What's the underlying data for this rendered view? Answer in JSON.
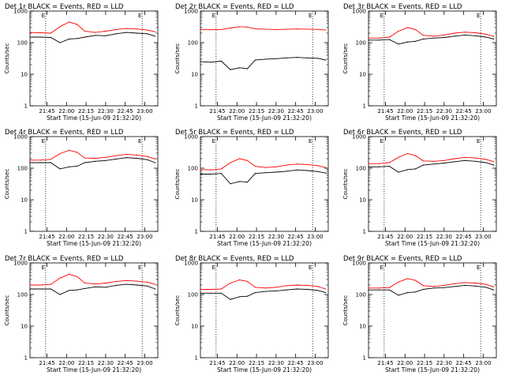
{
  "figure": {
    "background": "#ffffff",
    "line_colors": {
      "events": "#000000",
      "lld": "#ff0000"
    }
  },
  "chart_data": [
    {
      "type": "line",
      "title": "Det 1r BLACK = Events, RED = LLD",
      "xlabel": "Start Time (15-Jun-09 21:32:20)",
      "ylabel": "Counts/sec",
      "yscale": "log",
      "ylim": [
        1,
        1000
      ],
      "yticks": [
        "1",
        "10",
        "100",
        "1000"
      ],
      "xlim": [
        "21:32",
        "23:10"
      ],
      "xticks": [
        "21:45",
        "22:00",
        "22:15",
        "22:30",
        "22:45",
        "23:00"
      ],
      "markers": {
        "vlines": [
          "21:44",
          "22:58"
        ],
        "labels": [
          "E",
          "E"
        ],
        "label_position": "top"
      },
      "series": [
        {
          "name": "Events",
          "color": "#000000",
          "x": [
            "21:32",
            "21:40",
            "21:48",
            "21:55",
            "22:02",
            "22:08",
            "22:14",
            "22:22",
            "22:30",
            "22:38",
            "22:46",
            "22:54",
            "23:02",
            "23:08"
          ],
          "y": [
            150,
            150,
            145,
            100,
            130,
            135,
            150,
            170,
            165,
            190,
            210,
            200,
            190,
            160
          ]
        },
        {
          "name": "LLD",
          "color": "#ff0000",
          "x": [
            "21:32",
            "21:40",
            "21:48",
            "21:55",
            "22:02",
            "22:08",
            "22:14",
            "22:22",
            "22:30",
            "22:38",
            "22:46",
            "22:54",
            "23:02",
            "23:08"
          ],
          "y": [
            210,
            205,
            200,
            320,
            450,
            380,
            230,
            210,
            230,
            260,
            280,
            270,
            250,
            220
          ]
        }
      ]
    },
    {
      "type": "line",
      "title": "Det 2r BLACK = Events, RED = LLD",
      "xlabel": "Start Time (15-Jun-09 21:32:20)",
      "ylabel": "Counts/sec",
      "yscale": "log",
      "ylim": [
        1,
        1000
      ],
      "yticks": [
        "1",
        "10",
        "100",
        "1000"
      ],
      "xlim": [
        "21:32",
        "23:10"
      ],
      "xticks": [
        "21:45",
        "22:00",
        "22:15",
        "22:30",
        "22:45",
        "23:00"
      ],
      "markers": {
        "vlines": [
          "21:44",
          "22:58"
        ],
        "labels": [
          "E",
          "E"
        ],
        "label_position": "top"
      },
      "series": [
        {
          "name": "Events",
          "color": "#000000",
          "x": [
            "21:32",
            "21:40",
            "21:48",
            "21:55",
            "22:02",
            "22:08",
            "22:14",
            "22:22",
            "22:30",
            "22:38",
            "22:46",
            "22:54",
            "23:02",
            "23:08"
          ],
          "y": [
            25,
            24,
            26,
            14,
            16,
            15,
            28,
            30,
            31,
            33,
            34,
            33,
            32,
            28
          ]
        },
        {
          "name": "LLD",
          "color": "#ff0000",
          "x": [
            "21:32",
            "21:40",
            "21:48",
            "21:55",
            "22:02",
            "22:08",
            "22:14",
            "22:22",
            "22:30",
            "22:38",
            "22:46",
            "22:54",
            "23:02",
            "23:08"
          ],
          "y": [
            260,
            255,
            260,
            290,
            320,
            310,
            275,
            265,
            260,
            265,
            270,
            268,
            262,
            250
          ]
        }
      ]
    },
    {
      "type": "line",
      "title": "Det 3r BLACK = Events, RED = LLD",
      "xlabel": "Start Time (15-Jun-09 21:32:20)",
      "ylabel": "Counts/sec",
      "yscale": "log",
      "ylim": [
        1,
        1000
      ],
      "yticks": [
        "1",
        "10",
        "100",
        "1000"
      ],
      "xlim": [
        "21:32",
        "23:10"
      ],
      "xticks": [
        "21:45",
        "22:00",
        "22:15",
        "22:30",
        "22:45",
        "23:00"
      ],
      "markers": {
        "vlines": [
          "21:44",
          "22:58"
        ],
        "labels": [
          "E",
          "E"
        ],
        "label_position": "top"
      },
      "series": [
        {
          "name": "Events",
          "color": "#000000",
          "x": [
            "21:32",
            "21:40",
            "21:48",
            "21:55",
            "22:02",
            "22:08",
            "22:14",
            "22:22",
            "22:30",
            "22:38",
            "22:46",
            "22:54",
            "23:02",
            "23:08"
          ],
          "y": [
            120,
            120,
            125,
            90,
            105,
            110,
            130,
            140,
            145,
            160,
            175,
            165,
            150,
            130
          ]
        },
        {
          "name": "LLD",
          "color": "#ff0000",
          "x": [
            "21:32",
            "21:40",
            "21:48",
            "21:55",
            "22:02",
            "22:08",
            "22:14",
            "22:22",
            "22:30",
            "22:38",
            "22:46",
            "22:54",
            "23:02",
            "23:08"
          ],
          "y": [
            140,
            140,
            150,
            230,
            300,
            260,
            170,
            160,
            175,
            200,
            215,
            205,
            185,
            160
          ]
        }
      ]
    },
    {
      "type": "line",
      "title": "Det 4r BLACK = Events, RED = LLD",
      "xlabel": "Start Time (15-Jun-09 21:32:20)",
      "ylabel": "Counts/sec",
      "yscale": "log",
      "ylim": [
        1,
        1000
      ],
      "yticks": [
        "1",
        "10",
        "100",
        "1000"
      ],
      "xlim": [
        "21:32",
        "23:10"
      ],
      "xticks": [
        "21:45",
        "22:00",
        "22:15",
        "22:30",
        "22:45",
        "23:00"
      ],
      "markers": {
        "vlines": [
          "21:44",
          "22:58"
        ],
        "labels": [
          "E",
          "E"
        ],
        "label_position": "top"
      },
      "series": [
        {
          "name": "Events",
          "color": "#000000",
          "x": [
            "21:32",
            "21:40",
            "21:48",
            "21:55",
            "22:02",
            "22:08",
            "22:14",
            "22:22",
            "22:30",
            "22:38",
            "22:46",
            "22:54",
            "23:02",
            "23:08"
          ],
          "y": [
            150,
            150,
            150,
            95,
            110,
            115,
            150,
            165,
            175,
            195,
            215,
            205,
            185,
            150
          ]
        },
        {
          "name": "LLD",
          "color": "#ff0000",
          "x": [
            "21:32",
            "21:40",
            "21:48",
            "21:55",
            "22:02",
            "22:08",
            "22:14",
            "22:22",
            "22:30",
            "22:38",
            "22:46",
            "22:54",
            "23:02",
            "23:08"
          ],
          "y": [
            180,
            180,
            190,
            290,
            370,
            320,
            210,
            205,
            220,
            250,
            275,
            260,
            235,
            195
          ]
        }
      ]
    },
    {
      "type": "line",
      "title": "Det 5r BLACK = Events, RED = LLD",
      "xlabel": "Start Time (15-Jun-09 21:32:20)",
      "ylabel": "Counts/sec",
      "yscale": "log",
      "ylim": [
        1,
        1000
      ],
      "yticks": [
        "1",
        "10",
        "100",
        "1000"
      ],
      "xlim": [
        "21:32",
        "23:10"
      ],
      "xticks": [
        "21:45",
        "22:00",
        "22:15",
        "22:30",
        "22:45",
        "23:00"
      ],
      "markers": {
        "vlines": [
          "21:44",
          "22:58"
        ],
        "labels": [
          "E",
          "E"
        ],
        "label_position": "top"
      },
      "series": [
        {
          "name": "Events",
          "color": "#000000",
          "x": [
            "21:32",
            "21:40",
            "21:48",
            "21:55",
            "22:02",
            "22:08",
            "22:14",
            "22:22",
            "22:30",
            "22:38",
            "22:46",
            "22:54",
            "23:02",
            "23:08"
          ],
          "y": [
            65,
            65,
            68,
            32,
            38,
            36,
            68,
            72,
            75,
            80,
            88,
            84,
            78,
            70
          ]
        },
        {
          "name": "LLD",
          "color": "#ff0000",
          "x": [
            "21:32",
            "21:40",
            "21:48",
            "21:55",
            "22:02",
            "22:08",
            "22:14",
            "22:22",
            "22:30",
            "22:38",
            "22:46",
            "22:54",
            "23:02",
            "23:08"
          ],
          "y": [
            90,
            88,
            95,
            150,
            200,
            175,
            115,
            105,
            110,
            125,
            135,
            130,
            120,
            105
          ]
        }
      ]
    },
    {
      "type": "line",
      "title": "Det 6r BLACK = Events, RED = LLD",
      "xlabel": "Start Time (15-Jun-09 21:32:20)",
      "ylabel": "Counts/sec",
      "yscale": "log",
      "ylim": [
        1,
        1000
      ],
      "yticks": [
        "1",
        "10",
        "100",
        "1000"
      ],
      "xlim": [
        "21:32",
        "23:10"
      ],
      "xticks": [
        "21:45",
        "22:00",
        "22:15",
        "22:30",
        "22:45",
        "23:00"
      ],
      "markers": {
        "vlines": [
          "21:44",
          "22:58"
        ],
        "labels": [
          "E",
          "E"
        ],
        "label_position": "top"
      },
      "series": [
        {
          "name": "Events",
          "color": "#000000",
          "x": [
            "21:32",
            "21:40",
            "21:48",
            "21:55",
            "22:02",
            "22:08",
            "22:14",
            "22:22",
            "22:30",
            "22:38",
            "22:46",
            "22:54",
            "23:02",
            "23:08"
          ],
          "y": [
            110,
            110,
            115,
            75,
            90,
            95,
            125,
            135,
            145,
            160,
            175,
            165,
            150,
            125
          ]
        },
        {
          "name": "LLD",
          "color": "#ff0000",
          "x": [
            "21:32",
            "21:40",
            "21:48",
            "21:55",
            "22:02",
            "22:08",
            "22:14",
            "22:22",
            "22:30",
            "22:38",
            "22:46",
            "22:54",
            "23:02",
            "23:08"
          ],
          "y": [
            140,
            140,
            150,
            220,
            290,
            250,
            170,
            165,
            175,
            200,
            220,
            210,
            190,
            160
          ]
        }
      ]
    },
    {
      "type": "line",
      "title": "Det 7r BLACK = Events, RED = LLD",
      "xlabel": "Start Time (15-Jun-09 21:32:20)",
      "ylabel": "Counts/sec",
      "yscale": "log",
      "ylim": [
        1,
        1000
      ],
      "yticks": [
        "1",
        "10",
        "100",
        "1000"
      ],
      "xlim": [
        "21:32",
        "23:10"
      ],
      "xticks": [
        "21:45",
        "22:00",
        "22:15",
        "22:30",
        "22:45",
        "23:00"
      ],
      "markers": {
        "vlines": [
          "21:44",
          "22:58"
        ],
        "labels": [
          "E",
          "E"
        ],
        "label_position": "top"
      },
      "series": [
        {
          "name": "Events",
          "color": "#000000",
          "x": [
            "21:32",
            "21:40",
            "21:48",
            "21:55",
            "22:02",
            "22:08",
            "22:14",
            "22:22",
            "22:30",
            "22:38",
            "22:46",
            "22:54",
            "23:02",
            "23:08"
          ],
          "y": [
            150,
            150,
            150,
            100,
            135,
            140,
            155,
            175,
            170,
            195,
            210,
            200,
            185,
            150
          ]
        },
        {
          "name": "LLD",
          "color": "#ff0000",
          "x": [
            "21:32",
            "21:40",
            "21:48",
            "21:55",
            "22:02",
            "22:08",
            "22:14",
            "22:22",
            "22:30",
            "22:38",
            "22:46",
            "22:54",
            "23:02",
            "23:08"
          ],
          "y": [
            200,
            200,
            210,
            330,
            440,
            370,
            230,
            215,
            230,
            260,
            275,
            265,
            245,
            210
          ]
        }
      ]
    },
    {
      "type": "line",
      "title": "Det 8r BLACK = Events, RED = LLD",
      "xlabel": "Start Time (15-Jun-09 21:32:20)",
      "ylabel": "Counts/sec",
      "yscale": "log",
      "ylim": [
        1,
        1000
      ],
      "yticks": [
        "1",
        "10",
        "100",
        "1000"
      ],
      "xlim": [
        "21:32",
        "23:10"
      ],
      "xticks": [
        "21:45",
        "22:00",
        "22:15",
        "22:30",
        "22:45",
        "23:00"
      ],
      "markers": {
        "vlines": [
          "21:44",
          "22:58"
        ],
        "labels": [
          "E",
          "E"
        ],
        "label_position": "top"
      },
      "series": [
        {
          "name": "Events",
          "color": "#000000",
          "x": [
            "21:32",
            "21:40",
            "21:48",
            "21:55",
            "22:02",
            "22:08",
            "22:14",
            "22:22",
            "22:30",
            "22:38",
            "22:46",
            "22:54",
            "23:02",
            "23:08"
          ],
          "y": [
            110,
            110,
            110,
            70,
            85,
            88,
            115,
            125,
            130,
            140,
            150,
            145,
            135,
            115
          ]
        },
        {
          "name": "LLD",
          "color": "#ff0000",
          "x": [
            "21:32",
            "21:40",
            "21:48",
            "21:55",
            "22:02",
            "22:08",
            "22:14",
            "22:22",
            "22:30",
            "22:38",
            "22:46",
            "22:54",
            "23:02",
            "23:08"
          ],
          "y": [
            145,
            145,
            150,
            230,
            290,
            260,
            170,
            160,
            170,
            190,
            200,
            195,
            180,
            150
          ]
        }
      ]
    },
    {
      "type": "line",
      "title": "Det 9r BLACK = Events, RED = LLD",
      "xlabel": "Start Time (15-Jun-09 21:32:20)",
      "ylabel": "Counts/sec",
      "yscale": "log",
      "ylim": [
        1,
        1000
      ],
      "yticks": [
        "1",
        "10",
        "100",
        "1000"
      ],
      "xlim": [
        "21:32",
        "23:10"
      ],
      "xticks": [
        "21:45",
        "22:00",
        "22:15",
        "22:30",
        "22:45",
        "23:00"
      ],
      "markers": {
        "vlines": [
          "21:44",
          "22:58"
        ],
        "labels": [
          "E",
          "E"
        ],
        "label_position": "top"
      },
      "series": [
        {
          "name": "Events",
          "color": "#000000",
          "x": [
            "21:32",
            "21:40",
            "21:48",
            "21:55",
            "22:02",
            "22:08",
            "22:14",
            "22:22",
            "22:30",
            "22:38",
            "22:46",
            "22:54",
            "23:02",
            "23:08"
          ],
          "y": [
            140,
            140,
            140,
            95,
            115,
            120,
            145,
            160,
            165,
            180,
            195,
            185,
            170,
            140
          ]
        },
        {
          "name": "LLD",
          "color": "#ff0000",
          "x": [
            "21:32",
            "21:40",
            "21:48",
            "21:55",
            "22:02",
            "22:08",
            "22:14",
            "22:22",
            "22:30",
            "22:38",
            "22:46",
            "22:54",
            "23:02",
            "23:08"
          ],
          "y": [
            160,
            160,
            165,
            250,
            320,
            280,
            190,
            180,
            195,
            220,
            240,
            230,
            210,
            175
          ]
        }
      ]
    }
  ]
}
